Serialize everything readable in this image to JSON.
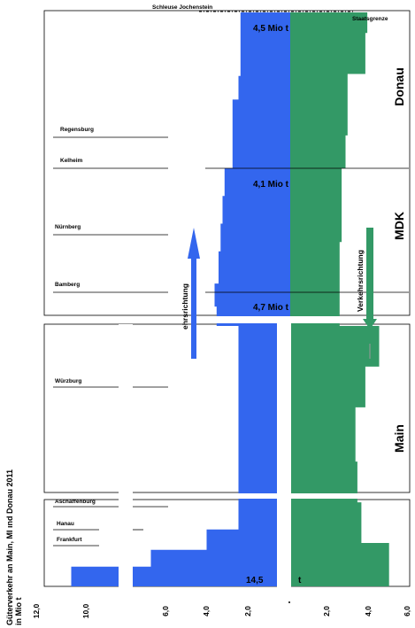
{
  "chart_data": {
    "type": "area",
    "title": "Güterverkehr an Main, MDK und Donau 2011",
    "title_rendered": "Güterverkehr an Main, MI   ınd Donau 2011",
    "unit": "in Mio t",
    "value_axis_ticks_left": [
      "12,0",
      "10,0",
      "6,0",
      "4,0",
      "2,0"
    ],
    "value_axis_ticks_right": [
      "2,0",
      "4,0",
      "6,0"
    ],
    "value_axis_ticks_unlabeled": [
      "8,0",
      "0,0"
    ],
    "value_range": [
      0,
      12
    ],
    "grid": false,
    "sections": [
      {
        "id": "donau",
        "name": "Donau"
      },
      {
        "id": "mdk",
        "name": "MDK"
      },
      {
        "id": "main",
        "name": "Main"
      }
    ],
    "top_labels": {
      "left": "Schleuse Jochenstein",
      "right": "Staatsgrenze"
    },
    "locations": [
      {
        "id": "regensburg",
        "name": "Regensburg"
      },
      {
        "id": "kelheim",
        "name": "Kelheim"
      },
      {
        "id": "nuernberg",
        "name": "Nürnberg"
      },
      {
        "id": "bamberg",
        "name": "Bamberg"
      },
      {
        "id": "wuerzburg",
        "name": "Würzburg"
      },
      {
        "id": "aschaffenburg",
        "name": "Aschaffenburg"
      },
      {
        "id": "hanau",
        "name": "Hanau"
      },
      {
        "id": "frankfurt",
        "name": "Frankfurt"
      }
    ],
    "value_labels": [
      {
        "id": "jochenstein",
        "text": "4,5 Mio t"
      },
      {
        "id": "kelheim",
        "text": "4,1 Mio t"
      },
      {
        "id": "bamberg",
        "text": "4,7 Mio t"
      },
      {
        "id": "main_mouth",
        "text": "14,5",
        "suffix": "t"
      }
    ],
    "series": [
      {
        "name": "Verkehrsrichtung",
        "direction": "up",
        "color": "#3366ee",
        "label_rendered": "ehrsrichtung",
        "values_donau": [
          {
            "km": 0,
            "v": 2.5
          },
          {
            "km": 62,
            "v": 2.6
          },
          {
            "km": 85,
            "v": 2.9
          },
          {
            "km": 152,
            "v": 2.9
          }
        ],
        "values_mdk": [
          {
            "km": 0,
            "v": 3.3
          },
          {
            "km": 30,
            "v": 3.4
          },
          {
            "km": 60,
            "v": 3.5
          },
          {
            "km": 90,
            "v": 3.6
          },
          {
            "km": 125,
            "v": 3.8
          },
          {
            "km": 150,
            "v": 3.7
          },
          {
            "km": 171,
            "v": 3.7
          }
        ],
        "values_main": [
          {
            "km": 0,
            "v": 2.6
          },
          {
            "km": 100,
            "v": 2.6
          },
          {
            "km": 200,
            "v": 2.6
          },
          {
            "km": 260,
            "v": 2.6
          },
          {
            "km": 300,
            "v": 4.2
          },
          {
            "km": 330,
            "v": 7.0
          },
          {
            "km": 355,
            "v": 11.0
          },
          {
            "km": 384,
            "v": 13.0
          }
        ]
      },
      {
        "name": "Verkehrsrichtung",
        "direction": "down",
        "color": "#339966",
        "label_rendered": "Verkehrsrichtung",
        "values_donau": [
          {
            "km": 0,
            "v": 3.9
          },
          {
            "km": 20,
            "v": 3.8
          },
          {
            "km": 60,
            "v": 2.9
          },
          {
            "km": 120,
            "v": 2.8
          },
          {
            "km": 152,
            "v": 2.7
          }
        ],
        "values_mdk": [
          {
            "km": 0,
            "v": 2.6
          },
          {
            "km": 50,
            "v": 2.6
          },
          {
            "km": 80,
            "v": 2.5
          },
          {
            "km": 140,
            "v": 2.5
          },
          {
            "km": 171,
            "v": 2.9
          }
        ],
        "values_main": [
          {
            "km": 0,
            "v": 4.5
          },
          {
            "km": 60,
            "v": 3.8
          },
          {
            "km": 120,
            "v": 3.3
          },
          {
            "km": 200,
            "v": 3.4
          },
          {
            "km": 260,
            "v": 3.6
          },
          {
            "km": 320,
            "v": 5.0
          },
          {
            "km": 384,
            "v": 5.3
          }
        ]
      }
    ]
  }
}
